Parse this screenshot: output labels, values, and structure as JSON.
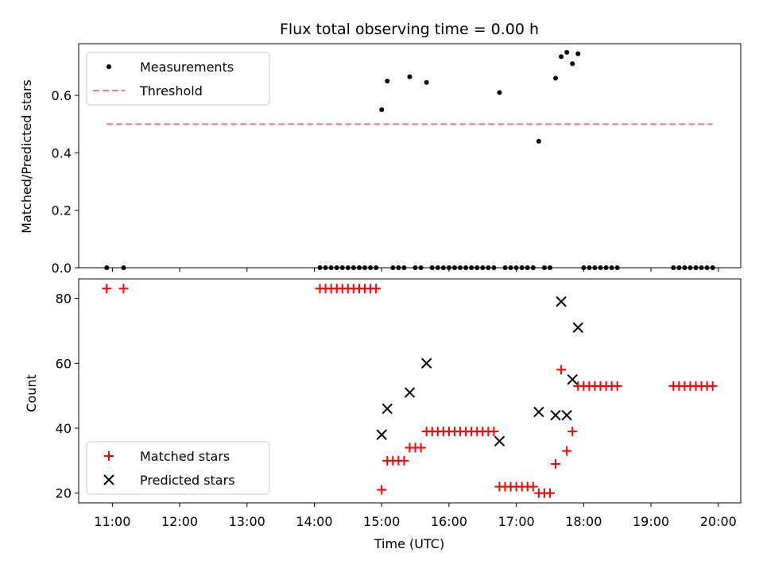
{
  "chart_data": [
    {
      "type": "scatter",
      "title": "Flux total observing time = 0.00 h",
      "xlabel": "",
      "ylabel": "Matched/Predicted stars",
      "ylim": [
        0,
        0.78
      ],
      "yticks": [
        "0.0",
        "0.2",
        "0.4",
        "0.6"
      ],
      "legend": {
        "location": "top-left",
        "entries": [
          "Measurements",
          "Threshold"
        ]
      },
      "series": [
        {
          "name": "Measurements",
          "marker": "dot",
          "color": "#000000",
          "points": [
            [
              "10:55",
              0
            ],
            [
              "11:10",
              0
            ],
            [
              "14:05",
              0
            ],
            [
              "14:10",
              0
            ],
            [
              "14:15",
              0
            ],
            [
              "14:20",
              0
            ],
            [
              "14:25",
              0
            ],
            [
              "14:30",
              0
            ],
            [
              "14:35",
              0
            ],
            [
              "14:40",
              0
            ],
            [
              "14:45",
              0
            ],
            [
              "14:50",
              0
            ],
            [
              "14:55",
              0
            ],
            [
              "15:00",
              0.55
            ],
            [
              "15:05",
              0.65
            ],
            [
              "15:10",
              0
            ],
            [
              "15:15",
              0
            ],
            [
              "15:20",
              0
            ],
            [
              "15:25",
              0.665
            ],
            [
              "15:30",
              0
            ],
            [
              "15:35",
              0
            ],
            [
              "15:40",
              0.645
            ],
            [
              "15:45",
              0
            ],
            [
              "15:50",
              0
            ],
            [
              "15:55",
              0
            ],
            [
              "16:00",
              0
            ],
            [
              "16:05",
              0
            ],
            [
              "16:10",
              0
            ],
            [
              "16:15",
              0
            ],
            [
              "16:20",
              0
            ],
            [
              "16:25",
              0
            ],
            [
              "16:30",
              0
            ],
            [
              "16:35",
              0
            ],
            [
              "16:40",
              0
            ],
            [
              "16:45",
              0.61
            ],
            [
              "16:50",
              0
            ],
            [
              "16:55",
              0
            ],
            [
              "17:00",
              0
            ],
            [
              "17:05",
              0
            ],
            [
              "17:10",
              0
            ],
            [
              "17:15",
              0
            ],
            [
              "17:20",
              0.44
            ],
            [
              "17:25",
              0
            ],
            [
              "17:30",
              0
            ],
            [
              "17:35",
              0.66
            ],
            [
              "17:40",
              0.735
            ],
            [
              "17:45",
              0.75
            ],
            [
              "17:50",
              0.71
            ],
            [
              "17:55",
              0.745
            ],
            [
              "18:00",
              0
            ],
            [
              "18:05",
              0
            ],
            [
              "18:10",
              0
            ],
            [
              "18:15",
              0
            ],
            [
              "18:20",
              0
            ],
            [
              "18:25",
              0
            ],
            [
              "18:30",
              0
            ],
            [
              "19:20",
              0
            ],
            [
              "19:25",
              0
            ],
            [
              "19:30",
              0
            ],
            [
              "19:35",
              0
            ],
            [
              "19:40",
              0
            ],
            [
              "19:45",
              0
            ],
            [
              "19:50",
              0
            ],
            [
              "19:55",
              0
            ]
          ]
        },
        {
          "name": "Threshold",
          "style": "dashed",
          "color": "#ff7b7b",
          "points": [
            [
              "10:55",
              0.5
            ],
            [
              "19:55",
              0.5
            ]
          ]
        }
      ]
    },
    {
      "type": "scatter",
      "title": "",
      "xlabel": "Time (UTC)",
      "ylabel": "Count",
      "ylim": [
        17,
        86
      ],
      "yticks": [
        "20",
        "40",
        "60",
        "80"
      ],
      "xlim": [
        "10:30",
        "20:20"
      ],
      "xticks": [
        "11:00",
        "12:00",
        "13:00",
        "14:00",
        "15:00",
        "16:00",
        "17:00",
        "18:00",
        "19:00",
        "20:00"
      ],
      "legend": {
        "location": "bottom-left",
        "entries": [
          "Matched stars",
          "Predicted stars"
        ]
      },
      "series": [
        {
          "name": "Matched stars",
          "marker": "plus",
          "color": "#ff0000",
          "points": [
            [
              "10:55",
              83
            ],
            [
              "11:10",
              83
            ],
            [
              "14:05",
              83
            ],
            [
              "14:10",
              83
            ],
            [
              "14:15",
              83
            ],
            [
              "14:20",
              83
            ],
            [
              "14:25",
              83
            ],
            [
              "14:30",
              83
            ],
            [
              "14:35",
              83
            ],
            [
              "14:40",
              83
            ],
            [
              "14:45",
              83
            ],
            [
              "14:50",
              83
            ],
            [
              "14:55",
              83
            ],
            [
              "15:00",
              21
            ],
            [
              "15:05",
              30
            ],
            [
              "15:10",
              30
            ],
            [
              "15:15",
              30
            ],
            [
              "15:20",
              30
            ],
            [
              "15:25",
              34
            ],
            [
              "15:30",
              34
            ],
            [
              "15:35",
              34
            ],
            [
              "15:40",
              39
            ],
            [
              "15:45",
              39
            ],
            [
              "15:50",
              39
            ],
            [
              "15:55",
              39
            ],
            [
              "16:00",
              39
            ],
            [
              "16:05",
              39
            ],
            [
              "16:10",
              39
            ],
            [
              "16:15",
              39
            ],
            [
              "16:20",
              39
            ],
            [
              "16:25",
              39
            ],
            [
              "16:30",
              39
            ],
            [
              "16:35",
              39
            ],
            [
              "16:40",
              39
            ],
            [
              "16:45",
              22
            ],
            [
              "16:50",
              22
            ],
            [
              "16:55",
              22
            ],
            [
              "17:00",
              22
            ],
            [
              "17:05",
              22
            ],
            [
              "17:10",
              22
            ],
            [
              "17:15",
              22
            ],
            [
              "17:20",
              20
            ],
            [
              "17:25",
              20
            ],
            [
              "17:30",
              20
            ],
            [
              "17:35",
              29
            ],
            [
              "17:40",
              58
            ],
            [
              "17:45",
              33
            ],
            [
              "17:50",
              39
            ],
            [
              "17:55",
              53
            ],
            [
              "18:00",
              53
            ],
            [
              "18:05",
              53
            ],
            [
              "18:10",
              53
            ],
            [
              "18:15",
              53
            ],
            [
              "18:20",
              53
            ],
            [
              "18:25",
              53
            ],
            [
              "18:30",
              53
            ],
            [
              "19:20",
              53
            ],
            [
              "19:25",
              53
            ],
            [
              "19:30",
              53
            ],
            [
              "19:35",
              53
            ],
            [
              "19:40",
              53
            ],
            [
              "19:45",
              53
            ],
            [
              "19:50",
              53
            ],
            [
              "19:55",
              53
            ]
          ]
        },
        {
          "name": "Predicted stars",
          "marker": "x",
          "color": "#000000",
          "points": [
            [
              "15:00",
              38
            ],
            [
              "15:05",
              46
            ],
            [
              "15:25",
              51
            ],
            [
              "15:40",
              60
            ],
            [
              "16:45",
              36
            ],
            [
              "17:20",
              45
            ],
            [
              "17:35",
              44
            ],
            [
              "17:40",
              79
            ],
            [
              "17:45",
              44
            ],
            [
              "17:50",
              55
            ],
            [
              "17:55",
              71
            ]
          ]
        }
      ]
    }
  ]
}
